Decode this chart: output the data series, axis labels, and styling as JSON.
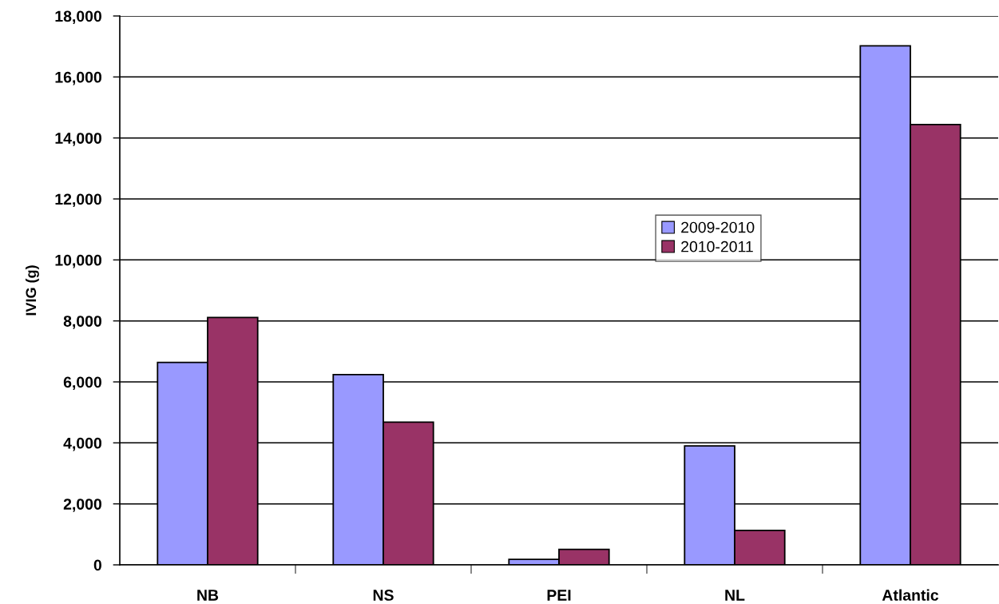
{
  "chart_data": {
    "type": "bar",
    "ylabel": "IVIG (g)",
    "categories": [
      "NB",
      "NS",
      "PEI",
      "NL",
      "Atlantic"
    ],
    "series": [
      {
        "name": "2009-2010",
        "color": "#9999ff",
        "values": [
          6640,
          6240,
          180,
          3900,
          17020
        ]
      },
      {
        "name": "2010-2011",
        "color": "#993366",
        "values": [
          8110,
          4680,
          510,
          1130,
          14440
        ]
      }
    ],
    "ylim": [
      0,
      18000
    ],
    "yticks": [
      {
        "value": 0,
        "label": "0"
      },
      {
        "value": 2000,
        "label": "2,000"
      },
      {
        "value": 4000,
        "label": "4,000"
      },
      {
        "value": 6000,
        "label": "6,000"
      },
      {
        "value": 8000,
        "label": "8,000"
      },
      {
        "value": 10000,
        "label": "10,000"
      },
      {
        "value": 12000,
        "label": "12,000"
      },
      {
        "value": 14000,
        "label": "14,000"
      },
      {
        "value": 16000,
        "label": "16,000"
      },
      {
        "value": 18000,
        "label": "18,000"
      }
    ],
    "grid": "y",
    "legend": "center right"
  }
}
